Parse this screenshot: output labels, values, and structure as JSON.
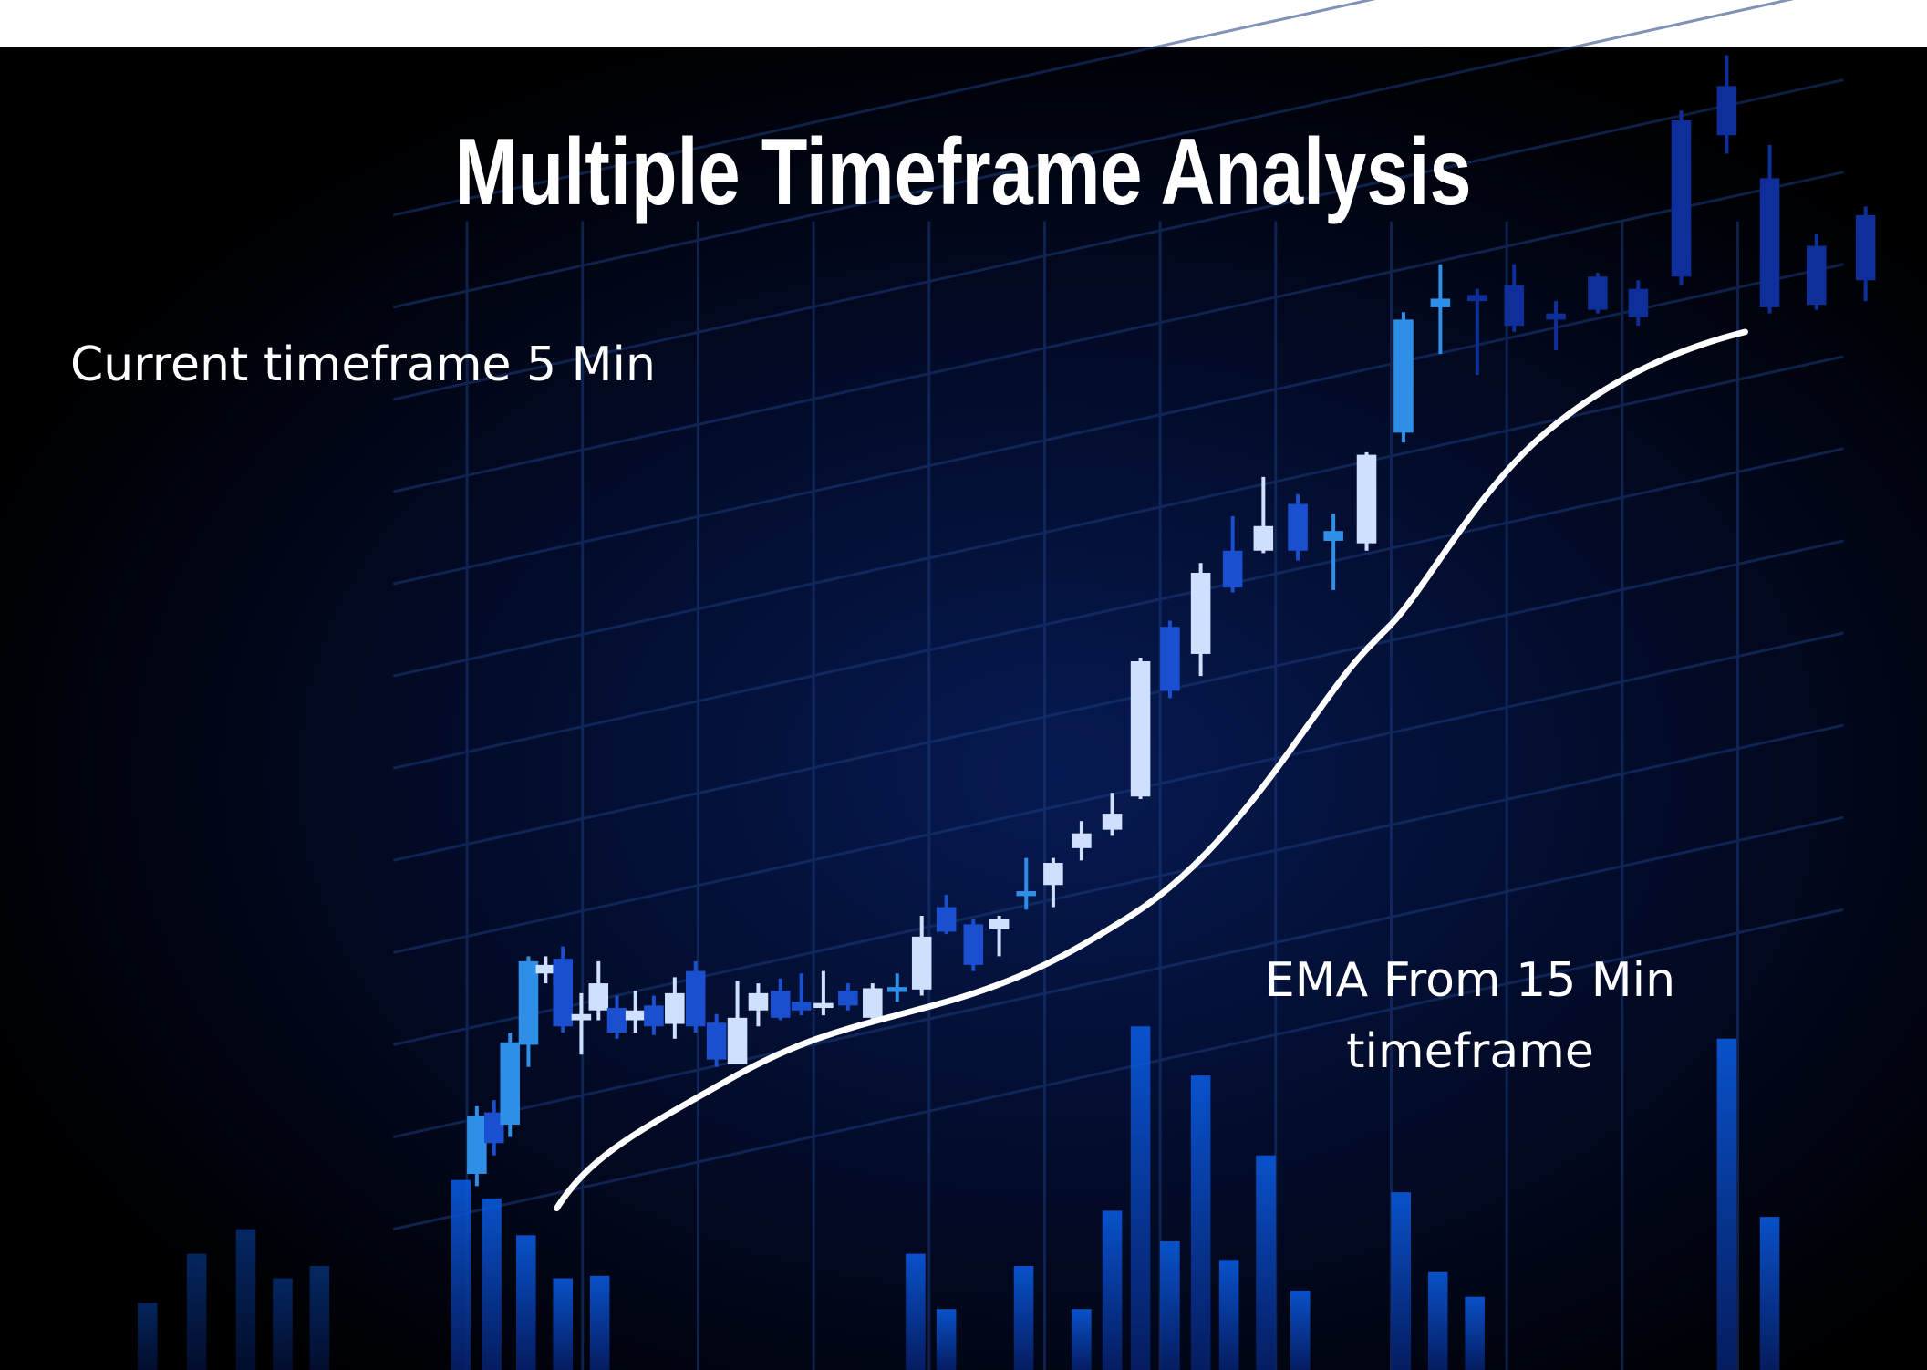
{
  "title": "Multiple Timeframe Analysis",
  "annotations": {
    "current": "Current timeframe 5 Min",
    "ema_line1": "EMA From 15 Min",
    "ema_line2": "timeframe"
  }
}
